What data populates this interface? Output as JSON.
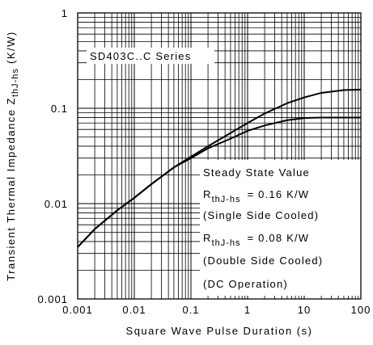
{
  "chart_data": {
    "type": "line",
    "xscale": "log",
    "yscale": "log",
    "xlim": [
      0.001,
      100
    ],
    "ylim": [
      0.001,
      1
    ],
    "grid": true,
    "xlabel": "Square Wave Pulse Duration (s)",
    "ylabel": {
      "prefix": "Transient Thermal Impedance Z",
      "subscript": "thJ-hs",
      "suffix": " (K/W)"
    },
    "x_ticks": [
      {
        "value": 0.001,
        "label": "0.001"
      },
      {
        "value": 0.01,
        "label": "0.01"
      },
      {
        "value": 0.1,
        "label": "0.1"
      },
      {
        "value": 1,
        "label": "1"
      },
      {
        "value": 10,
        "label": "10"
      },
      {
        "value": 100,
        "label": "100"
      }
    ],
    "y_ticks": [
      {
        "value": 0.001,
        "label": "0.001"
      },
      {
        "value": 0.01,
        "label": "0.01"
      },
      {
        "value": 0.1,
        "label": "0.1"
      },
      {
        "value": 1,
        "label": "1"
      }
    ],
    "series_label": "SD403C..C Series",
    "series": [
      {
        "x": [
          0.001,
          0.002,
          0.005,
          0.01,
          0.02,
          0.05,
          0.1,
          0.2,
          0.5,
          1,
          2,
          5,
          10,
          20,
          50,
          100
        ],
        "y": [
          0.0035,
          0.0054,
          0.0085,
          0.0115,
          0.016,
          0.024,
          0.031,
          0.04,
          0.055,
          0.07,
          0.088,
          0.113,
          0.13,
          0.145,
          0.155,
          0.157
        ]
      },
      {
        "x": [
          0.001,
          0.002,
          0.005,
          0.01,
          0.02,
          0.05,
          0.1,
          0.2,
          0.5,
          1,
          2,
          5,
          10,
          20,
          50,
          100
        ],
        "y": [
          0.0035,
          0.0054,
          0.0085,
          0.0115,
          0.016,
          0.024,
          0.03,
          0.038,
          0.048,
          0.058,
          0.066,
          0.075,
          0.079,
          0.08,
          0.08,
          0.08
        ]
      }
    ],
    "annotation": {
      "line1": "Steady State Value",
      "line2_main": "R",
      "line2_sub": "thJ-hs",
      "line2_value": "= 0.16 K/W",
      "line3": "(Single Side Cooled)",
      "line4_main": "R",
      "line4_sub": "thJ-hs",
      "line4_value": "= 0.08 K/W",
      "line5": "(Double Side Cooled)",
      "line6": "(DC Operation)"
    }
  }
}
